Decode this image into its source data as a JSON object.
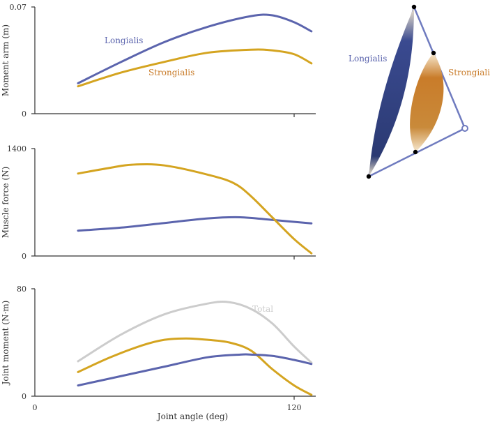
{
  "colors": {
    "longialis": "#5b64ad",
    "strongialis": "#d4a420",
    "total": "#cccccc",
    "linkage": "#6f7bbf",
    "muscle_dark": "#2b3a73",
    "muscle_orange": "#c97c2a"
  },
  "chart_data": [
    {
      "type": "line",
      "ylabel": "Moment arm (m)",
      "xlabel": "",
      "xlim": [
        0,
        130
      ],
      "ylim": [
        0,
        0.07
      ],
      "yticks": [
        "0",
        "0.07"
      ],
      "xticks": [],
      "series": [
        {
          "name": "Longialis",
          "x": [
            20,
            40,
            60,
            80,
            100,
            110,
            120,
            128
          ],
          "values": [
            0.02,
            0.034,
            0.047,
            0.057,
            0.064,
            0.0645,
            0.06,
            0.054
          ]
        },
        {
          "name": "Strongialis",
          "x": [
            20,
            40,
            60,
            80,
            100,
            110,
            120,
            128
          ],
          "values": [
            0.018,
            0.027,
            0.034,
            0.04,
            0.042,
            0.0415,
            0.039,
            0.033
          ]
        }
      ]
    },
    {
      "type": "line",
      "ylabel": "Muscle force (N)",
      "xlabel": "",
      "xlim": [
        0,
        130
      ],
      "ylim": [
        0,
        1400
      ],
      "yticks": [
        "0",
        "1400"
      ],
      "xticks": [],
      "series": [
        {
          "name": "Longialis",
          "x": [
            20,
            40,
            60,
            80,
            95,
            110,
            128
          ],
          "values": [
            330,
            370,
            430,
            490,
            505,
            470,
            425
          ]
        },
        {
          "name": "Strongialis",
          "x": [
            20,
            35,
            45,
            60,
            80,
            92,
            100,
            110,
            120,
            128
          ],
          "values": [
            1075,
            1150,
            1190,
            1180,
            1060,
            950,
            780,
            500,
            220,
            35
          ]
        }
      ]
    },
    {
      "type": "line",
      "ylabel": "Joint moment (N·m)",
      "xlabel": "Joint angle (deg)",
      "xlim": [
        0,
        130
      ],
      "ylim": [
        0,
        80
      ],
      "yticks": [
        "0",
        "80"
      ],
      "xticks": [
        "0",
        "120"
      ],
      "series": [
        {
          "name": "Total",
          "x": [
            20,
            40,
            60,
            80,
            90,
            100,
            110,
            120,
            128
          ],
          "values": [
            26,
            46,
            61,
            69,
            70,
            65,
            54,
            37,
            25
          ]
        },
        {
          "name": "Strongialis",
          "x": [
            20,
            35,
            50,
            60,
            70,
            80,
            90,
            100,
            110,
            120,
            128
          ],
          "values": [
            18,
            29,
            38,
            42,
            43,
            42,
            40,
            34,
            20,
            8,
            1
          ]
        },
        {
          "name": "Longialis",
          "x": [
            20,
            40,
            60,
            80,
            95,
            100,
            110,
            120,
            128
          ],
          "values": [
            8,
            15,
            22,
            29,
            31,
            31,
            30,
            27,
            24
          ]
        }
      ]
    }
  ],
  "schematic": {
    "labels": [
      "Longialis",
      "Strongialis"
    ]
  }
}
